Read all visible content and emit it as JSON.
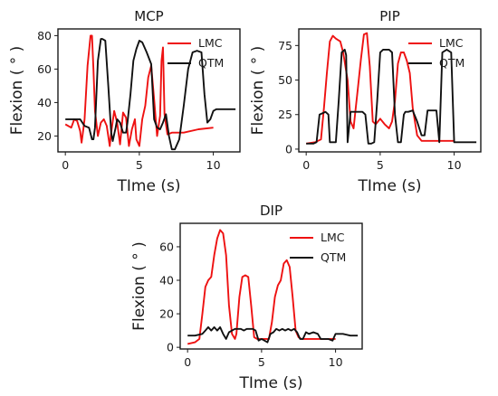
{
  "chart_data": [
    {
      "type": "line",
      "title": "MCP",
      "xlabel": "TIme (s)",
      "ylabel": "Flexion ( ° )",
      "xlim": [
        -0.5,
        11.8
      ],
      "ylim": [
        10.5,
        84
      ],
      "xticks": [
        0,
        5,
        10
      ],
      "yticks": [
        20,
        40,
        60,
        80
      ],
      "legend": "top-right",
      "series": [
        {
          "name": "LMC",
          "color": "#ee1111",
          "x": [
            0,
            0.4,
            0.6,
            0.8,
            1.0,
            1.1,
            1.2,
            1.3,
            1.5,
            1.7,
            1.8,
            1.9,
            2.0,
            2.2,
            2.4,
            2.6,
            2.8,
            3.0,
            3.1,
            3.3,
            3.5,
            3.7,
            3.9,
            4.1,
            4.3,
            4.5,
            4.7,
            4.8,
            5.0,
            5.2,
            5.4,
            5.6,
            5.8,
            6.0,
            6.2,
            6.4,
            6.5,
            6.6,
            6.7,
            6.9,
            7.2,
            8.0,
            9.0,
            10.0
          ],
          "y": [
            27,
            25,
            30,
            29,
            23,
            16,
            23,
            30,
            62,
            80,
            80,
            60,
            35,
            20,
            28,
            30,
            26,
            14,
            22,
            35,
            28,
            15,
            34,
            31,
            14,
            24,
            30,
            18,
            14,
            30,
            38,
            55,
            62,
            42,
            20,
            32,
            65,
            73,
            33,
            21,
            22,
            22,
            24,
            25
          ]
        },
        {
          "name": "QTM",
          "color": "#111111",
          "x": [
            0,
            0.5,
            1.0,
            1.3,
            1.6,
            1.8,
            1.9,
            2.0,
            2.2,
            2.4,
            2.5,
            2.7,
            2.9,
            3.1,
            3.2,
            3.4,
            3.5,
            3.7,
            3.9,
            4.1,
            4.2,
            4.4,
            4.6,
            4.8,
            5.0,
            5.2,
            5.5,
            5.8,
            6.0,
            6.2,
            6.4,
            6.6,
            6.8,
            7.0,
            7.2,
            7.4,
            7.7,
            8.0,
            8.3,
            8.6,
            8.9,
            9.2,
            9.4,
            9.6,
            9.8,
            10.0,
            10.2,
            10.5,
            11.0,
            11.5
          ],
          "y": [
            30,
            30,
            30,
            26,
            25,
            18,
            18,
            25,
            65,
            78,
            78,
            77,
            50,
            22,
            17,
            25,
            30,
            28,
            22,
            22,
            28,
            45,
            65,
            72,
            77,
            76,
            70,
            63,
            30,
            25,
            24,
            28,
            33,
            20,
            12,
            12,
            18,
            38,
            60,
            70,
            71,
            70,
            45,
            28,
            30,
            35,
            36,
            36,
            36,
            36
          ]
        }
      ]
    },
    {
      "type": "line",
      "title": "PIP",
      "xlabel": "TIme (s)",
      "ylabel": "Flexion ( ° )",
      "xlim": [
        -0.5,
        11.8
      ],
      "ylim": [
        -2,
        87
      ],
      "xticks": [
        0,
        5,
        10
      ],
      "yticks": [
        0,
        25,
        50,
        75
      ],
      "legend": "top-right",
      "series": [
        {
          "name": "LMC",
          "color": "#ee1111",
          "x": [
            0,
            0.6,
            1.0,
            1.2,
            1.4,
            1.6,
            1.8,
            2.0,
            2.3,
            2.5,
            2.8,
            3.0,
            3.2,
            3.3,
            3.5,
            3.7,
            3.9,
            4.1,
            4.3,
            4.5,
            4.7,
            5.0,
            5.3,
            5.6,
            5.8,
            6.0,
            6.2,
            6.4,
            6.6,
            6.8,
            7.0,
            7.2,
            7.5,
            7.8,
            8.0,
            9.0,
            10.0
          ],
          "y": [
            4,
            5,
            7,
            30,
            55,
            78,
            82,
            80,
            78,
            70,
            50,
            20,
            15,
            25,
            45,
            65,
            83,
            84,
            60,
            20,
            18,
            22,
            18,
            15,
            20,
            35,
            62,
            70,
            70,
            64,
            55,
            30,
            10,
            6,
            6,
            6,
            6
          ]
        },
        {
          "name": "QTM",
          "color": "#111111",
          "x": [
            0,
            0.5,
            0.7,
            0.9,
            1.3,
            1.5,
            1.6,
            2.0,
            2.2,
            2.4,
            2.6,
            2.7,
            2.8,
            3.0,
            3.5,
            3.8,
            4.0,
            4.2,
            4.4,
            4.6,
            4.8,
            5.0,
            5.2,
            5.4,
            5.6,
            5.8,
            6.0,
            6.2,
            6.4,
            6.6,
            6.7,
            6.9,
            7.2,
            7.5,
            7.8,
            8.0,
            8.2,
            8.5,
            8.8,
            9.0,
            9.2,
            9.5,
            9.8,
            10.0,
            10.5,
            11.0,
            11.5
          ],
          "y": [
            4,
            4,
            5,
            25,
            27,
            25,
            5,
            5,
            35,
            70,
            72,
            68,
            5,
            27,
            27,
            27,
            25,
            4,
            4,
            5,
            35,
            70,
            72,
            72,
            72,
            70,
            25,
            5,
            5,
            25,
            27,
            27,
            28,
            20,
            10,
            10,
            28,
            28,
            28,
            5,
            70,
            72,
            70,
            5,
            5,
            5,
            5
          ]
        }
      ]
    },
    {
      "type": "line",
      "title": "DIP",
      "xlabel": "TIme (s)",
      "ylabel": "Flexion ( ° )",
      "xlim": [
        -0.5,
        11.8
      ],
      "ylim": [
        -1,
        74
      ],
      "xticks": [
        0,
        5,
        10
      ],
      "yticks": [
        0,
        20,
        40,
        60
      ],
      "legend": "top-right",
      "series": [
        {
          "name": "LMC",
          "color": "#ee1111",
          "x": [
            0,
            0.5,
            0.8,
            1.0,
            1.2,
            1.4,
            1.6,
            1.8,
            2.0,
            2.2,
            2.4,
            2.6,
            2.8,
            3.0,
            3.2,
            3.3,
            3.5,
            3.7,
            3.9,
            4.1,
            4.3,
            4.5,
            4.7,
            4.9,
            5.2,
            5.5,
            5.7,
            5.9,
            6.1,
            6.3,
            6.5,
            6.7,
            6.9,
            7.1,
            7.3,
            7.5,
            7.7,
            8.0,
            9.0,
            10.0
          ],
          "y": [
            2,
            3,
            5,
            20,
            36,
            40,
            42,
            55,
            65,
            70,
            68,
            55,
            25,
            8,
            5,
            8,
            30,
            42,
            43,
            42,
            25,
            6,
            5,
            5,
            5,
            5,
            15,
            30,
            37,
            40,
            50,
            52,
            48,
            30,
            10,
            6,
            5,
            5,
            5,
            5
          ]
        },
        {
          "name": "QTM",
          "color": "#111111",
          "x": [
            0,
            0.5,
            1.0,
            1.2,
            1.4,
            1.6,
            1.8,
            2.0,
            2.2,
            2.4,
            2.6,
            2.8,
            3.0,
            3.2,
            3.4,
            3.6,
            3.8,
            4.0,
            4.2,
            4.4,
            4.6,
            4.8,
            5.0,
            5.2,
            5.4,
            5.6,
            5.8,
            6.0,
            6.2,
            6.4,
            6.6,
            6.8,
            7.0,
            7.2,
            7.4,
            7.6,
            7.8,
            8.0,
            8.2,
            8.5,
            8.8,
            9.0,
            9.5,
            9.8,
            10.0,
            10.5,
            11.0,
            11.5
          ],
          "y": [
            7,
            7,
            8,
            10,
            12,
            10,
            12,
            10,
            12,
            8,
            5,
            9,
            10,
            11,
            11,
            11,
            10,
            11,
            11,
            11,
            10,
            4,
            5,
            4,
            3,
            8,
            9,
            11,
            10,
            11,
            10,
            11,
            10,
            11,
            9,
            5,
            5,
            9,
            8,
            9,
            8,
            5,
            5,
            4,
            8,
            8,
            7,
            7
          ]
        }
      ]
    }
  ]
}
